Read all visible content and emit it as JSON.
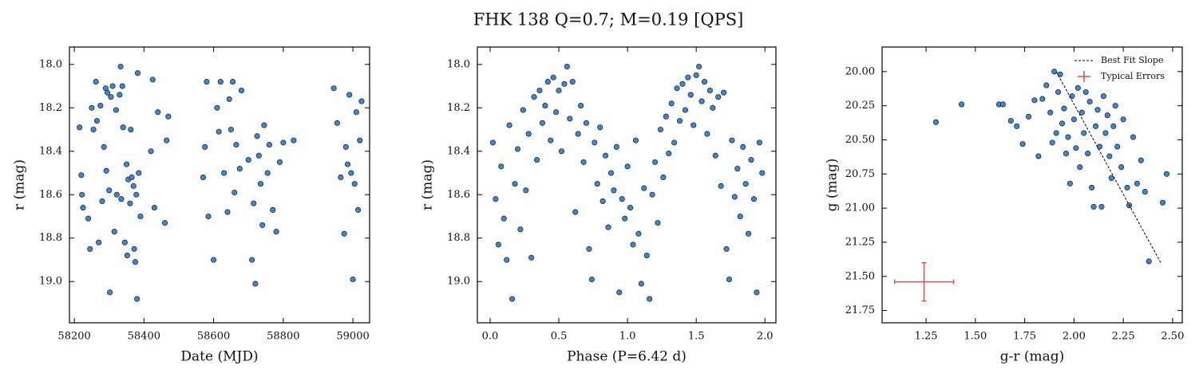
{
  "title": "FHK 138  Q=0.7; M=0.19 [QPS]",
  "chart_data": [
    {
      "type": "scatter",
      "xlabel": "Date (MJD)",
      "ylabel": "r (mag)",
      "color": "#3f87d4",
      "edgecolor": "#1a1a1a",
      "xlim": [
        58186,
        59048
      ],
      "ylim": [
        19.19,
        17.92
      ],
      "xticks": [
        58200,
        58400,
        58600,
        58800,
        59000
      ],
      "yticks": [
        {
          "value": 18,
          "label": "18.0"
        },
        18.2,
        18.4,
        18.6,
        18.8,
        {
          "value": 19,
          "label": "19.0"
        }
      ],
      "x": [
        58215,
        58220,
        58222,
        58225,
        58240,
        58245,
        58250,
        58255,
        58262,
        58265,
        58270,
        58275,
        58280,
        58285,
        58290,
        58292,
        58295,
        58300,
        58302,
        58305,
        58310,
        58315,
        58320,
        58322,
        58330,
        58333,
        58335,
        58338,
        58340,
        58345,
        58350,
        58352,
        58355,
        58360,
        58362,
        58365,
        58370,
        58372,
        58375,
        58378,
        58380,
        58382,
        58385,
        58390,
        58420,
        58425,
        58430,
        58440,
        58460,
        58465,
        58470,
        58570,
        58575,
        58580,
        58585,
        58600,
        58610,
        58615,
        58620,
        58630,
        58640,
        58645,
        58650,
        58655,
        58660,
        58665,
        58675,
        58680,
        58700,
        58710,
        58715,
        58720,
        58725,
        58730,
        58735,
        58740,
        58745,
        58755,
        58760,
        58770,
        58780,
        58790,
        58800,
        58830,
        58945,
        58955,
        58965,
        58975,
        58980,
        58985,
        58990,
        58995,
        59000,
        59005,
        59010,
        59015,
        59020,
        59025
      ],
      "values": [
        18.29,
        18.51,
        18.6,
        18.66,
        18.71,
        18.85,
        18.2,
        18.3,
        18.08,
        18.26,
        18.82,
        18.19,
        18.63,
        18.38,
        18.11,
        18.49,
        18.13,
        18.58,
        19.05,
        18.15,
        18.1,
        18.77,
        18.21,
        18.6,
        18.14,
        18.01,
        18.62,
        18.1,
        18.29,
        18.82,
        18.46,
        18.88,
        18.53,
        18.64,
        18.3,
        18.52,
        18.56,
        18.85,
        18.91,
        18.6,
        19.08,
        18.04,
        18.5,
        18.7,
        18.4,
        18.07,
        18.66,
        18.22,
        18.73,
        18.35,
        18.24,
        18.52,
        18.38,
        18.08,
        18.7,
        18.9,
        18.2,
        18.31,
        18.08,
        18.5,
        18.68,
        18.16,
        18.3,
        18.08,
        18.59,
        18.37,
        18.48,
        18.12,
        18.44,
        18.9,
        18.64,
        19.01,
        18.33,
        18.42,
        18.55,
        18.74,
        18.28,
        18.5,
        18.37,
        18.67,
        18.77,
        18.45,
        18.36,
        18.35,
        18.11,
        18.27,
        18.52,
        18.78,
        18.38,
        18.46,
        18.14,
        18.5,
        18.99,
        18.55,
        18.22,
        18.67,
        18.35,
        18.17
      ]
    },
    {
      "type": "scatter",
      "xlabel": "Phase (P=6.42 d)",
      "ylabel": "r (mag)",
      "color": "#3f87d4",
      "edgecolor": "#1a1a1a",
      "xlim": [
        -0.093,
        2.08
      ],
      "ylim": [
        19.19,
        17.92
      ],
      "xticks": [
        {
          "value": 0,
          "label": "0.0"
        },
        0.5,
        {
          "value": 1,
          "label": "1.0"
        },
        1.5,
        {
          "value": 2,
          "label": "2.0"
        }
      ],
      "yticks": [
        {
          "value": 18,
          "label": "18.0"
        },
        18.2,
        18.4,
        18.6,
        18.8,
        {
          "value": 19,
          "label": "19.0"
        }
      ],
      "x": [
        0.02,
        0.04,
        0.06,
        0.08,
        0.1,
        0.12,
        0.14,
        0.16,
        0.18,
        0.2,
        0.22,
        0.24,
        0.26,
        0.28,
        0.3,
        0.32,
        0.34,
        0.36,
        0.38,
        0.4,
        0.42,
        0.44,
        0.46,
        0.48,
        0.5,
        0.52,
        0.54,
        0.56,
        0.58,
        0.6,
        0.62,
        0.64,
        0.66,
        0.68,
        0.7,
        0.72,
        0.74,
        0.76,
        0.78,
        0.8,
        0.82,
        0.84,
        0.86,
        0.88,
        0.9,
        0.92,
        0.94,
        0.96,
        0.98,
        1.0,
        1.02,
        1.04,
        1.06,
        1.08,
        1.1,
        1.12,
        1.14,
        1.16,
        1.18,
        1.2,
        1.22,
        1.24,
        1.26,
        1.28,
        1.3,
        1.32,
        1.34,
        1.36,
        1.38,
        1.4,
        1.42,
        1.44,
        1.46,
        1.48,
        1.5,
        1.52,
        1.54,
        1.56,
        1.58,
        1.6,
        1.62,
        1.64,
        1.66,
        1.68,
        1.7,
        1.72,
        1.74,
        1.76,
        1.78,
        1.8,
        1.82,
        1.84,
        1.86,
        1.88,
        1.9,
        1.92,
        1.94,
        1.96,
        1.98
      ],
      "values": [
        18.36,
        18.62,
        18.83,
        18.47,
        18.71,
        18.9,
        18.28,
        19.08,
        18.55,
        18.39,
        18.76,
        18.21,
        18.58,
        18.32,
        18.89,
        18.15,
        18.44,
        18.12,
        18.27,
        18.19,
        18.08,
        18.35,
        18.06,
        18.22,
        18.12,
        18.4,
        18.09,
        18.01,
        18.25,
        18.08,
        18.68,
        18.32,
        18.19,
        18.45,
        18.27,
        18.85,
        18.99,
        18.36,
        18.55,
        18.29,
        18.63,
        18.42,
        18.75,
        18.5,
        18.58,
        18.38,
        19.05,
        18.62,
        18.71,
        18.47,
        18.66,
        18.83,
        18.35,
        18.78,
        19.01,
        18.57,
        18.88,
        19.08,
        18.6,
        18.45,
        18.73,
        18.3,
        18.52,
        18.24,
        18.41,
        18.18,
        18.36,
        18.11,
        18.26,
        18.09,
        18.21,
        18.06,
        18.14,
        18.28,
        18.05,
        18.01,
        18.17,
        18.08,
        18.32,
        18.12,
        18.2,
        18.42,
        18.15,
        18.56,
        18.13,
        18.85,
        18.99,
        18.35,
        18.61,
        18.48,
        18.7,
        18.38,
        18.55,
        18.78,
        18.44,
        18.62,
        19.05,
        18.36,
        18.5
      ]
    },
    {
      "type": "scatter",
      "xlabel": "g-r (mag)",
      "ylabel": "g (mag)",
      "color": "#3f87d4",
      "edgecolor": "#1a1a1a",
      "xlim": [
        1.027,
        2.549
      ],
      "ylim": [
        21.84,
        19.82
      ],
      "xticks": [
        1.25,
        {
          "value": 1.5,
          "label": "1.50"
        },
        1.75,
        {
          "value": 2,
          "label": "2.00"
        },
        2.25,
        {
          "value": 2.5,
          "label": "2.50"
        }
      ],
      "yticks": [
        {
          "value": 20,
          "label": "20.00"
        },
        20.25,
        {
          "value": 20.5,
          "label": "20.50"
        },
        20.75,
        {
          "value": 21,
          "label": "21.00"
        },
        21.25,
        {
          "value": 21.5,
          "label": "21.50"
        },
        21.75
      ],
      "x": [
        1.3,
        1.43,
        1.62,
        1.64,
        1.68,
        1.71,
        1.74,
        1.77,
        1.8,
        1.82,
        1.84,
        1.86,
        1.88,
        1.89,
        1.9,
        1.91,
        1.92,
        1.93,
        1.94,
        1.95,
        1.96,
        1.97,
        1.98,
        1.99,
        2.0,
        2.01,
        2.02,
        2.03,
        2.04,
        2.05,
        2.06,
        2.07,
        2.08,
        2.09,
        2.1,
        2.11,
        2.12,
        2.13,
        2.14,
        2.15,
        2.16,
        2.17,
        2.18,
        2.19,
        2.2,
        2.21,
        2.22,
        2.24,
        2.25,
        2.27,
        2.28,
        2.3,
        2.32,
        2.34,
        2.36,
        2.38,
        2.45,
        2.47
      ],
      "values": [
        20.37,
        20.24,
        20.24,
        20.24,
        20.36,
        20.4,
        20.53,
        20.33,
        20.21,
        20.62,
        20.2,
        20.1,
        20.3,
        20.52,
        20.0,
        20.45,
        20.15,
        20.02,
        20.38,
        20.27,
        20.6,
        20.48,
        20.82,
        20.18,
        20.35,
        20.56,
        20.12,
        20.7,
        20.3,
        20.45,
        20.15,
        20.6,
        20.22,
        20.85,
        20.99,
        20.4,
        20.28,
        20.55,
        20.99,
        20.18,
        20.45,
        20.32,
        20.62,
        20.78,
        20.4,
        20.25,
        20.55,
        20.7,
        20.35,
        20.85,
        20.98,
        20.48,
        20.82,
        20.65,
        20.88,
        21.39,
        20.96,
        20.75
      ],
      "fit": {
        "name": "Best Fit Slope",
        "color": "#000000",
        "x": [
          1.91,
          2.44
        ],
        "y": [
          20.0,
          21.4
        ]
      },
      "error": {
        "name": "Typical Errors",
        "color": "#d9534f",
        "x": 1.24,
        "y": 21.54,
        "xerr": 0.15,
        "yerr": 0.14
      },
      "legend": "upper right"
    }
  ]
}
